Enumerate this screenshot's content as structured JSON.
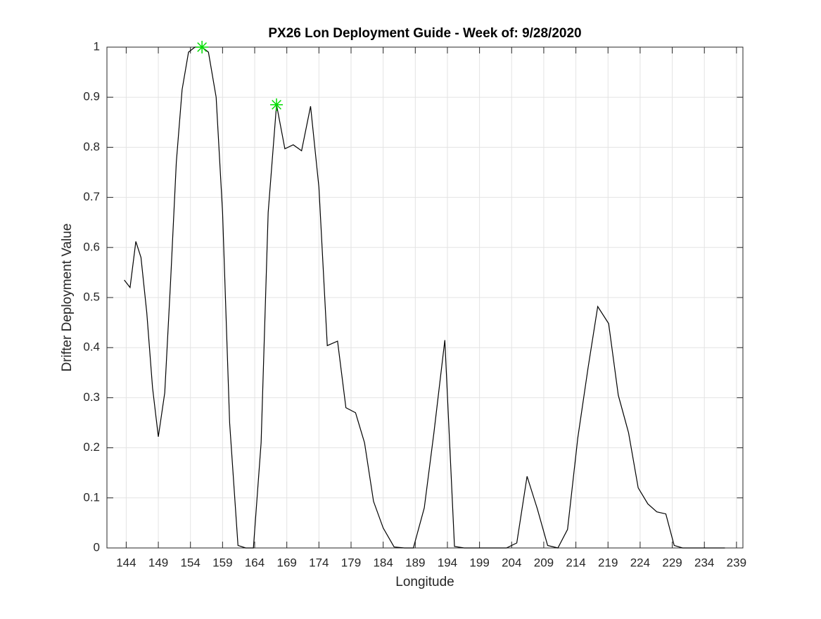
{
  "chart_data": {
    "type": "line",
    "title": "PX26 Lon Deployment Guide - Week of: 9/28/2020",
    "xlabel": "Longitude",
    "ylabel": "Drifter Deployment Value",
    "x": [
      143.7,
      144.6,
      145.5,
      146.3,
      147.2,
      148.1,
      149.0,
      150.0,
      150.9,
      151.8,
      152.7,
      153.7,
      154.7,
      155.8,
      156.8,
      158.0,
      159.0,
      160.1,
      161.4,
      162.6,
      163.8,
      165.0,
      166.1,
      167.4,
      168.7,
      170.0,
      171.3,
      172.7,
      174.0,
      175.3,
      176.9,
      178.2,
      179.7,
      181.1,
      182.5,
      184.0,
      185.7,
      187.3,
      188.7,
      190.4,
      191.9,
      193.6,
      195.1,
      196.6,
      198.3,
      199.9,
      201.6,
      203.2,
      204.8,
      206.4,
      208.0,
      209.6,
      211.2,
      212.7,
      214.3,
      215.9,
      217.4,
      219.1,
      220.6,
      222.2,
      223.7,
      225.2,
      226.6,
      228.0,
      229.3,
      230.6,
      232.2,
      233.9,
      235.5,
      237.2
    ],
    "series": [
      {
        "color": "#000000",
        "values": [
          0.535,
          0.52,
          0.612,
          0.58,
          0.47,
          0.32,
          0.222,
          0.31,
          0.53,
          0.77,
          0.915,
          0.99,
          1.0,
          1.0,
          0.99,
          0.9,
          0.67,
          0.25,
          0.005,
          0,
          0,
          0.21,
          0.67,
          0.885,
          0.797,
          0.805,
          0.793,
          0.882,
          0.72,
          0.404,
          0.413,
          0.28,
          0.27,
          0.21,
          0.093,
          0.04,
          0.002,
          0,
          0,
          0.08,
          0.23,
          0.415,
          0.003,
          0,
          0,
          0,
          0,
          0,
          0.01,
          0.143,
          0.078,
          0.005,
          0,
          0.037,
          0.22,
          0.36,
          0.482,
          0.448,
          0.305,
          0.23,
          0.12,
          0.088,
          0.072,
          0.068,
          0.005,
          0,
          0,
          0,
          0,
          0
        ]
      }
    ],
    "highlights": {
      "color": "#00dd00",
      "x": [
        155.8,
        167.4
      ],
      "y": [
        1.0,
        0.885
      ]
    },
    "xlim": [
      141,
      240
    ],
    "ylim": [
      0,
      1
    ],
    "xticks": [
      144,
      149,
      154,
      159,
      164,
      169,
      174,
      179,
      184,
      189,
      194,
      199,
      204,
      209,
      214,
      219,
      224,
      229,
      234,
      239
    ],
    "yticks": [
      0,
      0.1,
      0.2,
      0.3,
      0.4,
      0.5,
      0.6,
      0.7,
      0.8,
      0.9,
      1
    ],
    "grid": true
  }
}
